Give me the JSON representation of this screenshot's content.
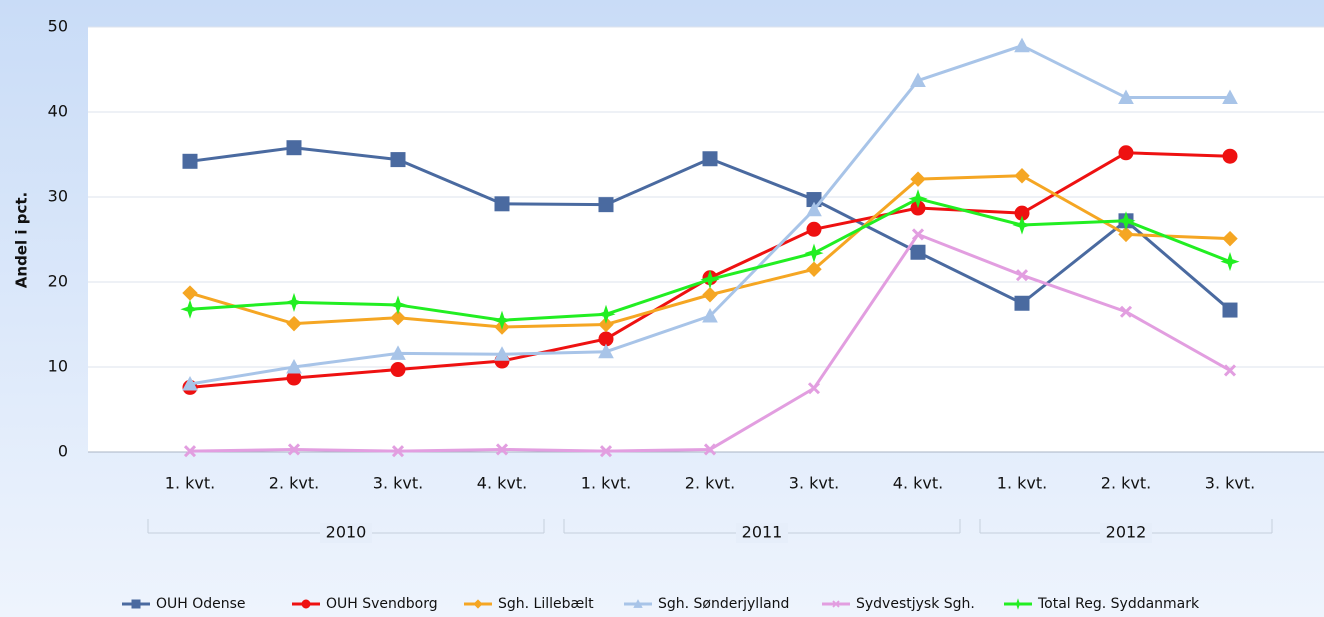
{
  "chart_data": {
    "type": "line",
    "y_label": "Andel i pct.",
    "categories": [
      "1. kvt.",
      "2. kvt.",
      "3. kvt.",
      "4. kvt.",
      "1. kvt.",
      "2. kvt.",
      "3. kvt.",
      "4. kvt.",
      "1. kvt.",
      "2. kvt.",
      "3. kvt."
    ],
    "category_groups": [
      {
        "label": "2010",
        "size": 4
      },
      {
        "label": "2011",
        "size": 4
      },
      {
        "label": "2012",
        "size": 3
      }
    ],
    "ylim": [
      0,
      50
    ],
    "yticks": [
      0,
      10,
      20,
      30,
      40,
      50
    ],
    "grid": true,
    "legend": "bottom",
    "series": [
      {
        "name": "OUH Odense",
        "color": "#4a6aa0",
        "marker": "square",
        "values": [
          34.2,
          35.8,
          34.4,
          29.2,
          29.1,
          34.5,
          29.7,
          23.5,
          17.5,
          27.2,
          16.7
        ]
      },
      {
        "name": "OUH Svendborg",
        "color": "#ee1111",
        "marker": "circle",
        "values": [
          7.6,
          8.7,
          9.7,
          10.7,
          13.3,
          20.5,
          26.2,
          28.7,
          28.1,
          35.2,
          34.8
        ]
      },
      {
        "name": "Sgh. Lillebælt",
        "color": "#f5a623",
        "marker": "diamond",
        "values": [
          18.7,
          15.1,
          15.8,
          14.7,
          15.0,
          18.5,
          21.5,
          32.1,
          32.5,
          25.6,
          25.1
        ]
      },
      {
        "name": "Sgh. Sønderjylland",
        "color": "#a8c4e8",
        "marker": "triangle",
        "values": [
          8.0,
          10.0,
          11.6,
          11.5,
          11.8,
          16.0,
          28.5,
          43.7,
          47.8,
          41.7,
          41.7
        ]
      },
      {
        "name": "Sydvestjysk Sgh.",
        "color": "#e29ee0",
        "marker": "cross",
        "values": [
          0.1,
          0.3,
          0.1,
          0.3,
          0.1,
          0.3,
          7.5,
          25.6,
          20.8,
          16.5,
          9.6
        ]
      },
      {
        "name": "Total Reg. Syddanmark",
        "color": "#22ee22",
        "marker": "star",
        "values": [
          16.8,
          17.6,
          17.3,
          15.5,
          16.2,
          20.3,
          23.4,
          29.8,
          26.7,
          27.2,
          22.4
        ]
      }
    ]
  }
}
